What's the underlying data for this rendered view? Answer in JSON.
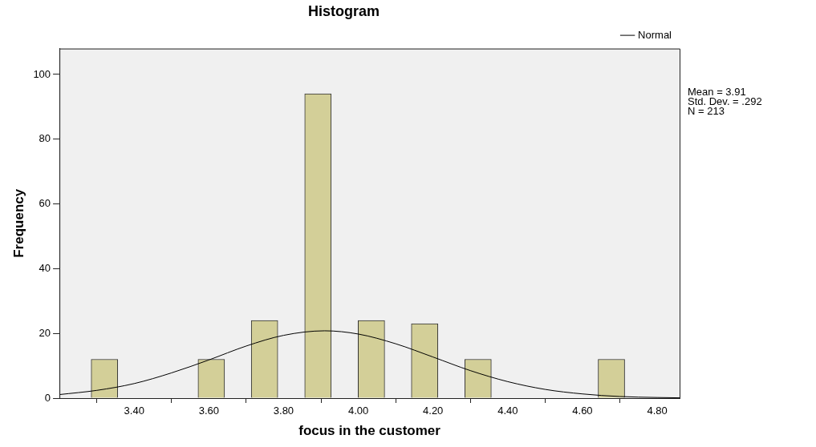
{
  "chart_data": {
    "type": "histogram",
    "title": "Histogram",
    "xlabel": "focus in the customer",
    "ylabel": "Frequency",
    "series": [
      {
        "color": "#d3cf98",
        "bins": [
          3.285,
          3.356,
          3.428,
          3.499,
          3.571,
          3.642,
          3.713,
          3.785,
          3.856,
          3.928,
          3.999,
          4.071,
          4.142,
          4.213,
          4.285,
          4.356,
          4.428,
          4.499,
          4.571,
          4.642,
          4.713
        ],
        "values": [
          12,
          0,
          0,
          0,
          12,
          0,
          24,
          0,
          94,
          0,
          24,
          0,
          23,
          0,
          12,
          0,
          0,
          0,
          0,
          12
        ]
      },
      {
        "type": "line",
        "name": "Normal",
        "color": "#000000",
        "x": [
          3.2,
          3.3,
          3.4,
          3.5,
          3.6,
          3.7,
          3.8,
          3.91,
          4.0,
          4.1,
          4.2,
          4.3,
          4.4,
          4.5,
          4.6,
          4.7,
          4.8,
          4.86
        ],
        "values": [
          1.1,
          2.4,
          4.5,
          7.8,
          11.8,
          16.1,
          19.4,
          20.8,
          19.8,
          16.8,
          12.7,
          8.5,
          5.1,
          2.7,
          1.3,
          0.5,
          0.2,
          0.1
        ]
      }
    ],
    "annotations": [
      "Mean = 3.91",
      "Std. Dev. = .292",
      "N = 213"
    ],
    "xlim": [
      3.2,
      4.86
    ],
    "xticks": [
      {
        "value": 3.4,
        "label": "3.40"
      },
      {
        "value": 3.6,
        "label": "3.60"
      },
      {
        "value": 3.8,
        "label": "3.80"
      },
      {
        "value": 4.0,
        "label": "4.00"
      },
      {
        "value": 4.2,
        "label": "4.20"
      },
      {
        "value": 4.4,
        "label": "4.40"
      },
      {
        "value": 4.6,
        "label": "4.60"
      },
      {
        "value": 4.8,
        "label": "4.80"
      }
    ],
    "ylim": [
      0,
      108
    ],
    "yticks": [
      0,
      20,
      40,
      60,
      80,
      100
    ],
    "grid": false,
    "legend": "top right",
    "marker": "none",
    "line_style": "solid"
  }
}
